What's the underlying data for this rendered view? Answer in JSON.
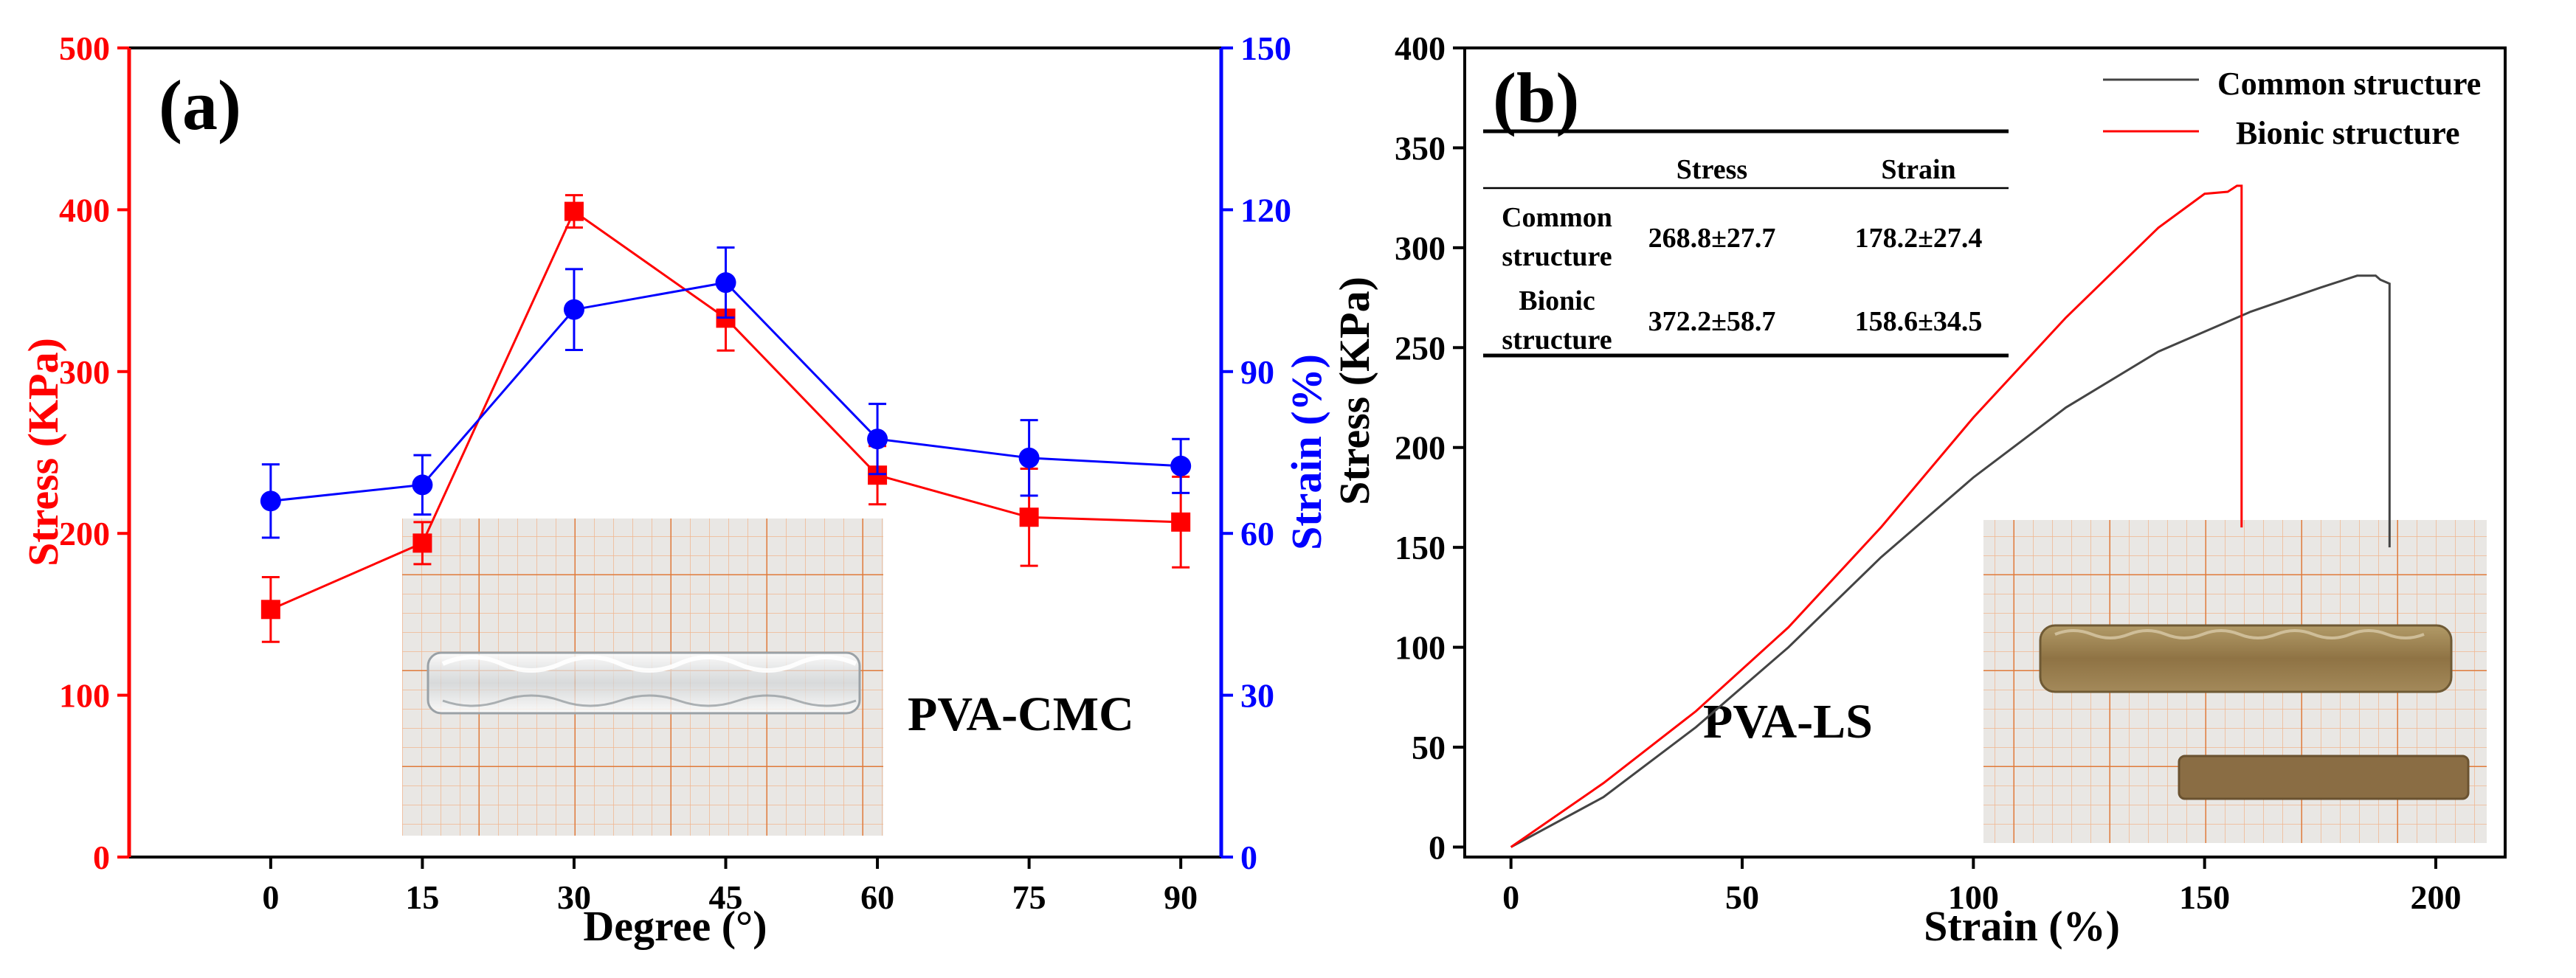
{
  "chart_data": [
    {
      "type": "scatter",
      "panel_label": "(a)",
      "xlabel": "Degree (°)",
      "ylabel_left": "Stress (KPa)",
      "ylabel_right": "Strain (%)",
      "x": [
        0,
        15,
        30,
        45,
        60,
        75,
        90
      ],
      "x_ticks": [
        "0",
        "15",
        "30",
        "45",
        "60",
        "75",
        "90"
      ],
      "xlim": [
        -14,
        94
      ],
      "ylim_left": [
        0,
        500
      ],
      "y_ticks_left": [
        "0",
        "100",
        "200",
        "300",
        "400",
        "500"
      ],
      "ylim_right": [
        0,
        150
      ],
      "y_ticks_right": [
        "0",
        "30",
        "60",
        "90",
        "120",
        "150"
      ],
      "series": [
        {
          "axis": "left",
          "color": "#ff0000",
          "marker": "square",
          "values": [
            153,
            194,
            399,
            333,
            236,
            210,
            207
          ],
          "errors": [
            20,
            13,
            10,
            20,
            18,
            30,
            28
          ]
        },
        {
          "axis": "right",
          "color": "#0000ff",
          "marker": "circle",
          "values": [
            66,
            69,
            101.5,
            106.5,
            77.5,
            74,
            72.5
          ],
          "errors": [
            6.8,
            5.5,
            7.5,
            6.5,
            6.5,
            7.0,
            5.0
          ]
        }
      ],
      "annotation": "PVA-CMC",
      "inset_photo": "transparent PVA-CMC hydrogel strip on orange grid paper"
    },
    {
      "type": "line",
      "panel_label": "(b)",
      "xlabel": "Strain (%)",
      "ylabel": "Stress (KPa)",
      "xlim": [
        -10,
        215
      ],
      "x_ticks": [
        "0",
        "50",
        "100",
        "150",
        "200"
      ],
      "ylim": [
        -5,
        400
      ],
      "y_ticks": [
        "0",
        "50",
        "100",
        "150",
        "200",
        "250",
        "300",
        "350",
        "400"
      ],
      "series": [
        {
          "name": "Common structure",
          "color": "#444444",
          "x": [
            0,
            20,
            40,
            60,
            80,
            100,
            120,
            140,
            160,
            175,
            183,
            187,
            188,
            190,
            190,
            190
          ],
          "y": [
            0,
            25,
            60,
            100,
            145,
            185,
            220,
            248,
            268,
            280,
            286,
            286,
            284,
            282,
            200,
            150
          ]
        },
        {
          "name": "Bionic structure",
          "color": "#ff0000",
          "x": [
            0,
            20,
            40,
            60,
            80,
            100,
            120,
            140,
            150,
            155,
            157,
            158,
            158,
            158
          ],
          "y": [
            0,
            32,
            68,
            110,
            160,
            215,
            265,
            310,
            327,
            328,
            331,
            331,
            250,
            160
          ]
        }
      ],
      "legend_position": "top-right",
      "table": {
        "headers": [
          "",
          "Stress",
          "Strain"
        ],
        "rows": [
          {
            "label": [
              "Common",
              "structure"
            ],
            "stress": "268.8±27.7",
            "strain": "178.2±27.4"
          },
          {
            "label": [
              "Bionic",
              "structure"
            ],
            "stress": "372.2±58.7",
            "strain": "158.6±34.5"
          }
        ]
      },
      "annotation": "PVA-LS",
      "inset_photo": "brown PVA-LS hydrogel strips on orange grid paper"
    }
  ]
}
